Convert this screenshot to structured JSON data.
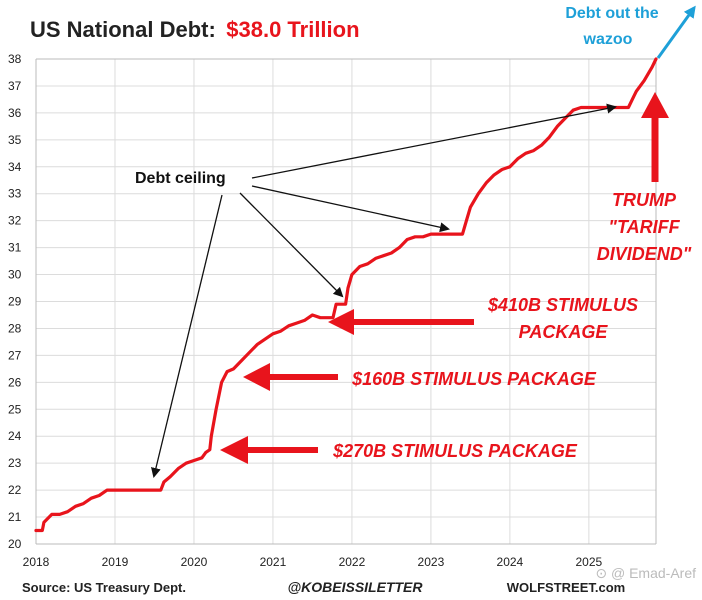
{
  "chart_data": {
    "type": "line",
    "title": "US National Debt:",
    "title_value": "$38.0 Trillion",
    "xlabel": "",
    "ylabel": "",
    "xlim": [
      2018,
      2025.85
    ],
    "ylim": [
      20,
      38
    ],
    "x_ticks": [
      "2018",
      "2019",
      "2020",
      "2021",
      "2022",
      "2023",
      "2024",
      "2025"
    ],
    "y_ticks": [
      "20",
      "21",
      "22",
      "23",
      "24",
      "25",
      "26",
      "27",
      "28",
      "29",
      "30",
      "31",
      "32",
      "33",
      "34",
      "35",
      "36",
      "37",
      "38"
    ],
    "grid": true,
    "line_color": "#e8141c",
    "series": [
      {
        "x": [
          2018.0,
          2018.08,
          2018.1,
          2018.2,
          2018.3,
          2018.4,
          2018.5,
          2018.6,
          2018.7,
          2018.8,
          2018.9,
          2019.0,
          2019.1,
          2019.2,
          2019.3,
          2019.4,
          2019.5,
          2019.58,
          2019.62,
          2019.7,
          2019.8,
          2019.9,
          2020.0,
          2020.1,
          2020.15,
          2020.2,
          2020.22,
          2020.28,
          2020.35,
          2020.42,
          2020.5,
          2020.6,
          2020.7,
          2020.8,
          2020.9,
          2021.0,
          2021.1,
          2021.2,
          2021.3,
          2021.4,
          2021.5,
          2021.6,
          2021.7,
          2021.76,
          2021.8,
          2021.88,
          2021.92,
          2021.95,
          2022.0,
          2022.1,
          2022.2,
          2022.3,
          2022.4,
          2022.5,
          2022.6,
          2022.7,
          2022.8,
          2022.9,
          2023.0,
          2023.1,
          2023.2,
          2023.3,
          2023.4,
          2023.45,
          2023.5,
          2023.6,
          2023.7,
          2023.8,
          2023.9,
          2024.0,
          2024.1,
          2024.2,
          2024.3,
          2024.4,
          2024.5,
          2024.6,
          2024.7,
          2024.8,
          2024.9,
          2025.0,
          2025.1,
          2025.2,
          2025.3,
          2025.4,
          2025.5,
          2025.55,
          2025.6,
          2025.7,
          2025.8,
          2025.85
        ],
        "y": [
          20.5,
          20.5,
          20.8,
          21.1,
          21.1,
          21.2,
          21.4,
          21.5,
          21.7,
          21.8,
          22.0,
          22.0,
          22.0,
          22.0,
          22.0,
          22.0,
          22.0,
          22.0,
          22.3,
          22.5,
          22.8,
          23.0,
          23.1,
          23.2,
          23.4,
          23.5,
          24.0,
          25.0,
          26.0,
          26.4,
          26.5,
          26.8,
          27.1,
          27.4,
          27.6,
          27.8,
          27.9,
          28.1,
          28.2,
          28.3,
          28.5,
          28.4,
          28.4,
          28.4,
          28.9,
          28.9,
          28.9,
          29.5,
          30.0,
          30.3,
          30.4,
          30.6,
          30.7,
          30.8,
          31.0,
          31.3,
          31.4,
          31.4,
          31.5,
          31.5,
          31.5,
          31.5,
          31.5,
          32.0,
          32.5,
          33.0,
          33.4,
          33.7,
          33.9,
          34.0,
          34.3,
          34.5,
          34.6,
          34.8,
          35.1,
          35.5,
          35.8,
          36.1,
          36.2,
          36.2,
          36.2,
          36.2,
          36.2,
          36.2,
          36.2,
          36.5,
          36.8,
          37.2,
          37.7,
          38.0
        ]
      }
    ],
    "annotations": {
      "debt_ceiling": "Debt ceiling",
      "stimulus_410_line1": "$410B STIMULUS",
      "stimulus_410_line2": "PACKAGE",
      "stimulus_160": "$160B STIMULUS PACKAGE",
      "stimulus_270": "$270B STIMULUS PACKAGE",
      "trump_line1": "TRUMP",
      "trump_line2": "\"TARIFF",
      "trump_line3": "DIVIDEND\"",
      "debt_out_line1": "Debt out the",
      "debt_out_line2": "wazoo"
    },
    "colors": {
      "red": "#e8141c",
      "blue": "#1ea0d8",
      "black": "#111111"
    }
  },
  "footer": {
    "source": "Source: US Treasury Dept.",
    "handle": "@KOBEISSILETTER",
    "site": "WOLFSTREET.com",
    "watermark": "⊙ @ Emad-Aref"
  }
}
